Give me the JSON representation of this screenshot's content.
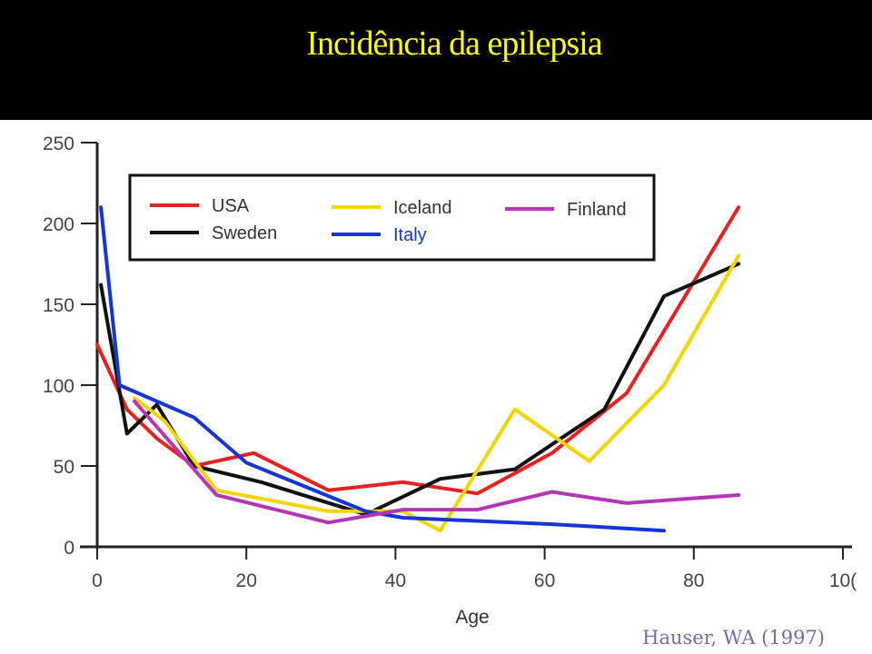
{
  "slide": {
    "title": "Incidência da epilepsia",
    "citation": "Hauser, WA (1997)"
  },
  "chart_data": {
    "type": "line",
    "title": "",
    "xlabel": "Age",
    "ylabel": "",
    "xlim": [
      0,
      100
    ],
    "ylim": [
      0,
      250
    ],
    "x_ticks": [
      "0",
      "20",
      "40",
      "60",
      "80",
      "10("
    ],
    "y_ticks": [
      "0",
      "50",
      "100",
      "150",
      "200",
      "250"
    ],
    "grid": false,
    "legend_position": "top-left inside",
    "series": [
      {
        "name": "USA",
        "color": "#e8201f",
        "x": [
          0,
          4,
          8,
          13,
          21,
          31,
          41,
          51,
          61,
          71,
          86
        ],
        "y": [
          125,
          85,
          67,
          50,
          58,
          35,
          40,
          33,
          58,
          95,
          210
        ]
      },
      {
        "name": "Sweden",
        "color": "#111111",
        "x": [
          0.5,
          4,
          8,
          13,
          22,
          36,
          46,
          56,
          68,
          76,
          86
        ],
        "y": [
          162,
          70,
          88,
          50,
          40,
          20,
          42,
          48,
          85,
          155,
          175
        ]
      },
      {
        "name": "Iceland",
        "color": "#f5d400",
        "x": [
          5,
          9,
          16,
          31,
          41,
          46,
          56,
          66,
          76,
          86
        ],
        "y": [
          92,
          78,
          35,
          22,
          22,
          10,
          85,
          53,
          100,
          180
        ]
      },
      {
        "name": "Italy",
        "color": "#1535d6",
        "x": [
          0.5,
          3,
          13,
          20,
          36,
          41,
          61,
          76
        ],
        "y": [
          210,
          100,
          80,
          52,
          22,
          18,
          14,
          10
        ]
      },
      {
        "name": "Finland",
        "color": "#b536b5",
        "x": [
          5,
          16,
          31,
          41,
          51,
          61,
          71,
          86
        ],
        "y": [
          90,
          32,
          15,
          23,
          23,
          34,
          27,
          32
        ]
      }
    ]
  }
}
